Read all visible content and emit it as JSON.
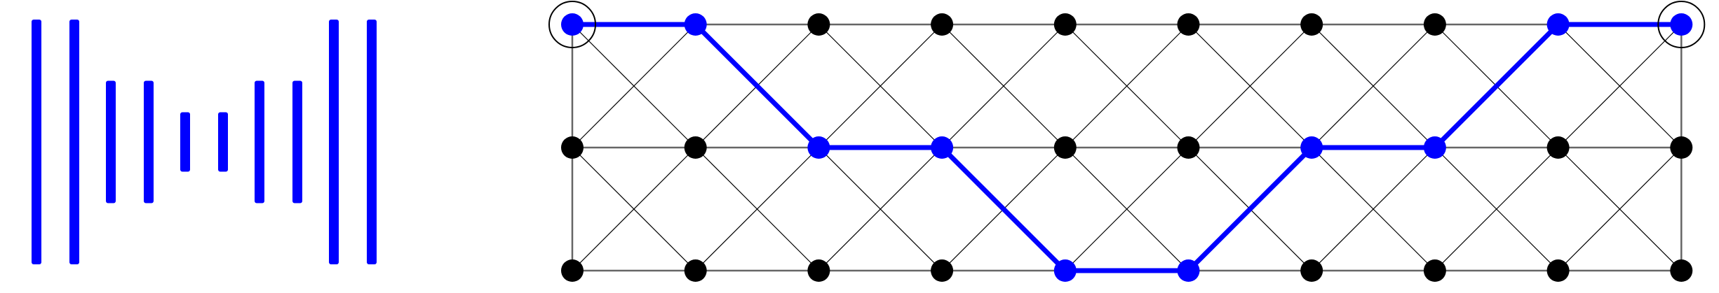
{
  "colors": {
    "accent": "#0000ff",
    "node": "#000000",
    "edge": "#000000",
    "background": "#ffffff"
  },
  "bars": {
    "pair_heights": [
      4,
      2,
      1,
      2,
      4
    ],
    "units": "relative"
  },
  "lattice": {
    "columns": 10,
    "rows": 3,
    "edges": [
      "horizontal",
      "vertical-border",
      "diagonal"
    ],
    "path_levels": [
      0,
      0,
      1,
      1,
      2,
      2,
      1,
      1,
      0,
      0
    ],
    "circled_nodes": [
      0,
      9
    ]
  }
}
